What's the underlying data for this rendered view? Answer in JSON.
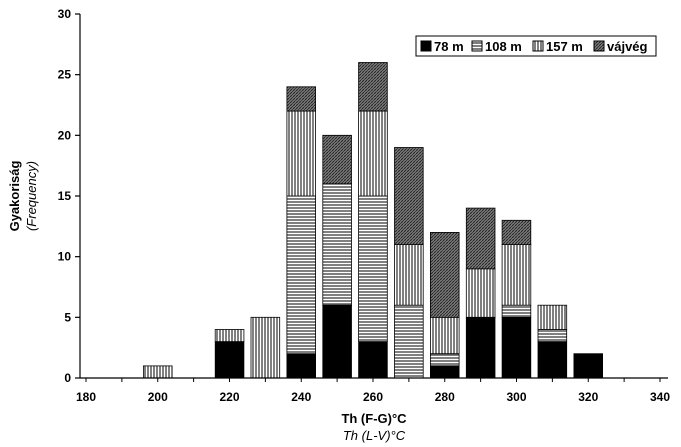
{
  "chart_data": {
    "type": "bar",
    "stacked": true,
    "title": "",
    "xlabel": "Th (F-G)°C",
    "xlabel_sub": "Th (L-V)°C",
    "ylabel": "Gyakoriság",
    "ylabel_sub": "(Frequency)",
    "xlim": [
      180,
      340
    ],
    "ylim": [
      0,
      30
    ],
    "xticks": [
      180,
      200,
      220,
      240,
      260,
      280,
      300,
      320,
      340
    ],
    "yticks": [
      0,
      5,
      10,
      15,
      20,
      25,
      30
    ],
    "bin_width": 8,
    "categories": [
      200,
      220,
      230,
      240,
      250,
      260,
      270,
      280,
      290,
      300,
      310,
      320
    ],
    "series": [
      {
        "name": "78 m",
        "values": [
          0,
          3,
          0,
          2,
          6,
          3,
          0,
          1,
          5,
          5,
          3,
          2
        ]
      },
      {
        "name": "108 m",
        "values": [
          0,
          0,
          0,
          13,
          10,
          12,
          6,
          1,
          0,
          1,
          1,
          0
        ]
      },
      {
        "name": "157 m",
        "values": [
          1,
          1,
          5,
          7,
          0,
          7,
          5,
          3,
          4,
          5,
          2,
          0
        ]
      },
      {
        "name": "vájvég",
        "values": [
          0,
          0,
          0,
          2,
          4,
          4,
          8,
          7,
          5,
          2,
          0,
          0
        ]
      }
    ],
    "legend_position": "top-right",
    "grid": false
  },
  "colors": {
    "78 m": "#000000",
    "108 m": "horizontal-hatch",
    "157 m": "vertical-hatch",
    "vájvég": "crosshatch-dark"
  }
}
